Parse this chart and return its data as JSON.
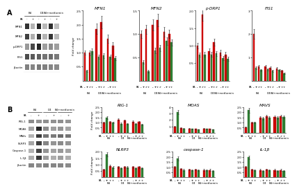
{
  "panel_A": {
    "wb_labels": [
      "FA",
      "MFN1",
      "MFN2",
      "p-DRP1",
      "FIS1",
      "β-actin"
    ],
    "bar_charts": [
      {
        "title": "MFN1",
        "ylim": [
          0,
          2.5
        ],
        "yticks": [
          0.5,
          1.0,
          1.5,
          2.0,
          2.5
        ],
        "bars": [
          1.0,
          0.35,
          1.0,
          1.05,
          1.85,
          0.85,
          2.1,
          0.9,
          1.5,
          0.85,
          1.25,
          0.8
        ],
        "errors": [
          0.08,
          0.04,
          0.09,
          0.09,
          0.18,
          0.08,
          0.22,
          0.09,
          0.14,
          0.08,
          0.12,
          0.07
        ]
      },
      {
        "title": "MFN2",
        "ylim": [
          0,
          1.5
        ],
        "yticks": [
          0.5,
          1.0,
          1.5
        ],
        "bars": [
          1.0,
          0.4,
          1.1,
          0.2,
          1.2,
          0.65,
          1.3,
          0.7,
          1.05,
          0.85,
          1.0,
          0.82
        ],
        "errors": [
          0.08,
          0.04,
          0.1,
          0.03,
          0.12,
          0.06,
          0.13,
          0.07,
          0.1,
          0.08,
          0.09,
          0.07
        ]
      },
      {
        "title": "p-DRP1",
        "ylim": [
          0,
          2.0
        ],
        "yticks": [
          0.5,
          1.0,
          1.5,
          2.0
        ],
        "bars": [
          1.0,
          0.75,
          1.9,
          0.75,
          0.85,
          0.75,
          1.1,
          0.78,
          0.8,
          0.65,
          0.75,
          0.62
        ],
        "errors": [
          0.08,
          0.06,
          0.18,
          0.07,
          0.08,
          0.07,
          0.1,
          0.07,
          0.08,
          0.06,
          0.07,
          0.06
        ]
      },
      {
        "title": "FIS1",
        "ylim": [
          0,
          3.0
        ],
        "yticks": [
          1.0,
          2.0,
          3.0
        ],
        "bars": [
          2.0,
          0.55,
          0.6,
          0.45,
          0.62,
          0.48,
          0.55,
          0.42,
          0.52,
          0.45,
          0.42,
          0.32
        ],
        "errors": [
          0.2,
          0.05,
          0.06,
          0.04,
          0.06,
          0.05,
          0.05,
          0.04,
          0.05,
          0.04,
          0.04,
          0.03
        ]
      }
    ]
  },
  "panel_B": {
    "wb_labels": [
      "FA",
      "RIG-1",
      "MOAS",
      "MAVs",
      "NLRP3",
      "Caspase-1",
      "IL-1β",
      "β-actin"
    ],
    "bar_charts_top": [
      {
        "title": "RIG-1",
        "ylim": [
          0,
          2.5
        ],
        "yticks": [
          0.5,
          1.0,
          1.5,
          2.0,
          2.5
        ],
        "bars": [
          1.0,
          1.5,
          1.05,
          1.0,
          1.3,
          0.9,
          1.2,
          0.85,
          1.1,
          0.85,
          1.05,
          0.8
        ],
        "errors": [
          0.09,
          0.14,
          0.1,
          0.09,
          0.12,
          0.08,
          0.11,
          0.08,
          0.1,
          0.08,
          0.09,
          0.07
        ]
      },
      {
        "title": "MOAS",
        "ylim": [
          0,
          4.0
        ],
        "yticks": [
          1.0,
          2.0,
          3.0,
          4.0
        ],
        "bars": [
          1.0,
          3.2,
          0.75,
          0.65,
          0.68,
          0.58,
          0.62,
          0.52,
          0.68,
          0.58,
          0.62,
          0.52
        ],
        "errors": [
          0.09,
          0.32,
          0.07,
          0.06,
          0.07,
          0.06,
          0.06,
          0.05,
          0.07,
          0.06,
          0.06,
          0.05
        ]
      },
      {
        "title": "MAVS",
        "ylim": [
          0,
          2.5
        ],
        "yticks": [
          0.5,
          1.0,
          1.5,
          2.0,
          2.5
        ],
        "bars": [
          0.55,
          2.2,
          1.0,
          1.0,
          1.5,
          1.4,
          1.6,
          1.5,
          1.55,
          1.5,
          1.6,
          1.55
        ],
        "errors": [
          0.05,
          0.22,
          0.09,
          0.09,
          0.14,
          0.13,
          0.15,
          0.14,
          0.15,
          0.14,
          0.15,
          0.14
        ]
      }
    ],
    "bar_charts_bottom": [
      {
        "title": "NLRP3",
        "ylim": [
          0,
          2.0
        ],
        "yticks": [
          0.5,
          1.0,
          1.5,
          2.0
        ],
        "bars": [
          0.62,
          1.8,
          0.88,
          0.78,
          0.82,
          0.72,
          0.82,
          0.78,
          0.82,
          0.72,
          0.82,
          0.72
        ],
        "errors": [
          0.06,
          0.18,
          0.08,
          0.07,
          0.08,
          0.07,
          0.08,
          0.07,
          0.08,
          0.07,
          0.08,
          0.07
        ]
      },
      {
        "title": "caspase-1",
        "ylim": [
          0,
          2.5
        ],
        "yticks": [
          0.5,
          1.0,
          1.5,
          2.0,
          2.5
        ],
        "bars": [
          1.0,
          1.85,
          0.82,
          0.72,
          0.78,
          0.68,
          0.78,
          0.68,
          0.72,
          0.68,
          0.72,
          0.62
        ],
        "errors": [
          0.09,
          0.18,
          0.08,
          0.07,
          0.07,
          0.06,
          0.07,
          0.06,
          0.07,
          0.06,
          0.07,
          0.06
        ]
      },
      {
        "title": "IL-1β",
        "ylim": [
          0,
          2.5
        ],
        "yticks": [
          0.5,
          1.0,
          1.5,
          2.0,
          2.5
        ],
        "bars": [
          1.0,
          1.95,
          0.78,
          0.68,
          0.72,
          0.62,
          0.78,
          0.68,
          0.72,
          0.62,
          0.72,
          0.62
        ],
        "errors": [
          0.09,
          0.19,
          0.07,
          0.06,
          0.07,
          0.06,
          0.07,
          0.06,
          0.07,
          0.06,
          0.07,
          0.06
        ]
      }
    ]
  },
  "red": "#cc0000",
  "green": "#2e7d32",
  "fa_labels": [
    "-",
    "+",
    "-",
    "+",
    "-",
    "+"
  ],
  "subgroup_labels": [
    "B4",
    "D4",
    "B4+metformin"
  ],
  "ylabel": "Fold change",
  "background": "#ffffff",
  "wb_band_data_A": [
    [
      0.8,
      0.3,
      0.85,
      0.28,
      0.82,
      0.26
    ],
    [
      0.75,
      0.32,
      0.78,
      0.3,
      0.8,
      0.28
    ],
    [
      0.4,
      0.72,
      0.85,
      0.38,
      0.45,
      0.38
    ],
    [
      0.7,
      0.65,
      0.62,
      0.55,
      0.58,
      0.52
    ],
    [
      0.5,
      0.48,
      0.52,
      0.5,
      0.48,
      0.46
    ]
  ],
  "wb_band_data_B": [
    [
      0.45,
      0.42,
      0.44,
      0.43,
      0.44,
      0.42
    ],
    [
      0.35,
      0.85,
      0.45,
      0.38,
      0.42,
      0.36
    ],
    [
      0.3,
      0.78,
      0.55,
      0.52,
      0.58,
      0.54
    ],
    [
      0.35,
      0.75,
      0.48,
      0.42,
      0.46,
      0.42
    ],
    [
      0.3,
      0.72,
      0.42,
      0.36,
      0.4,
      0.36
    ],
    [
      0.32,
      0.78,
      0.38,
      0.32,
      0.38,
      0.32
    ],
    [
      0.48,
      0.46,
      0.5,
      0.48,
      0.48,
      0.46
    ]
  ]
}
